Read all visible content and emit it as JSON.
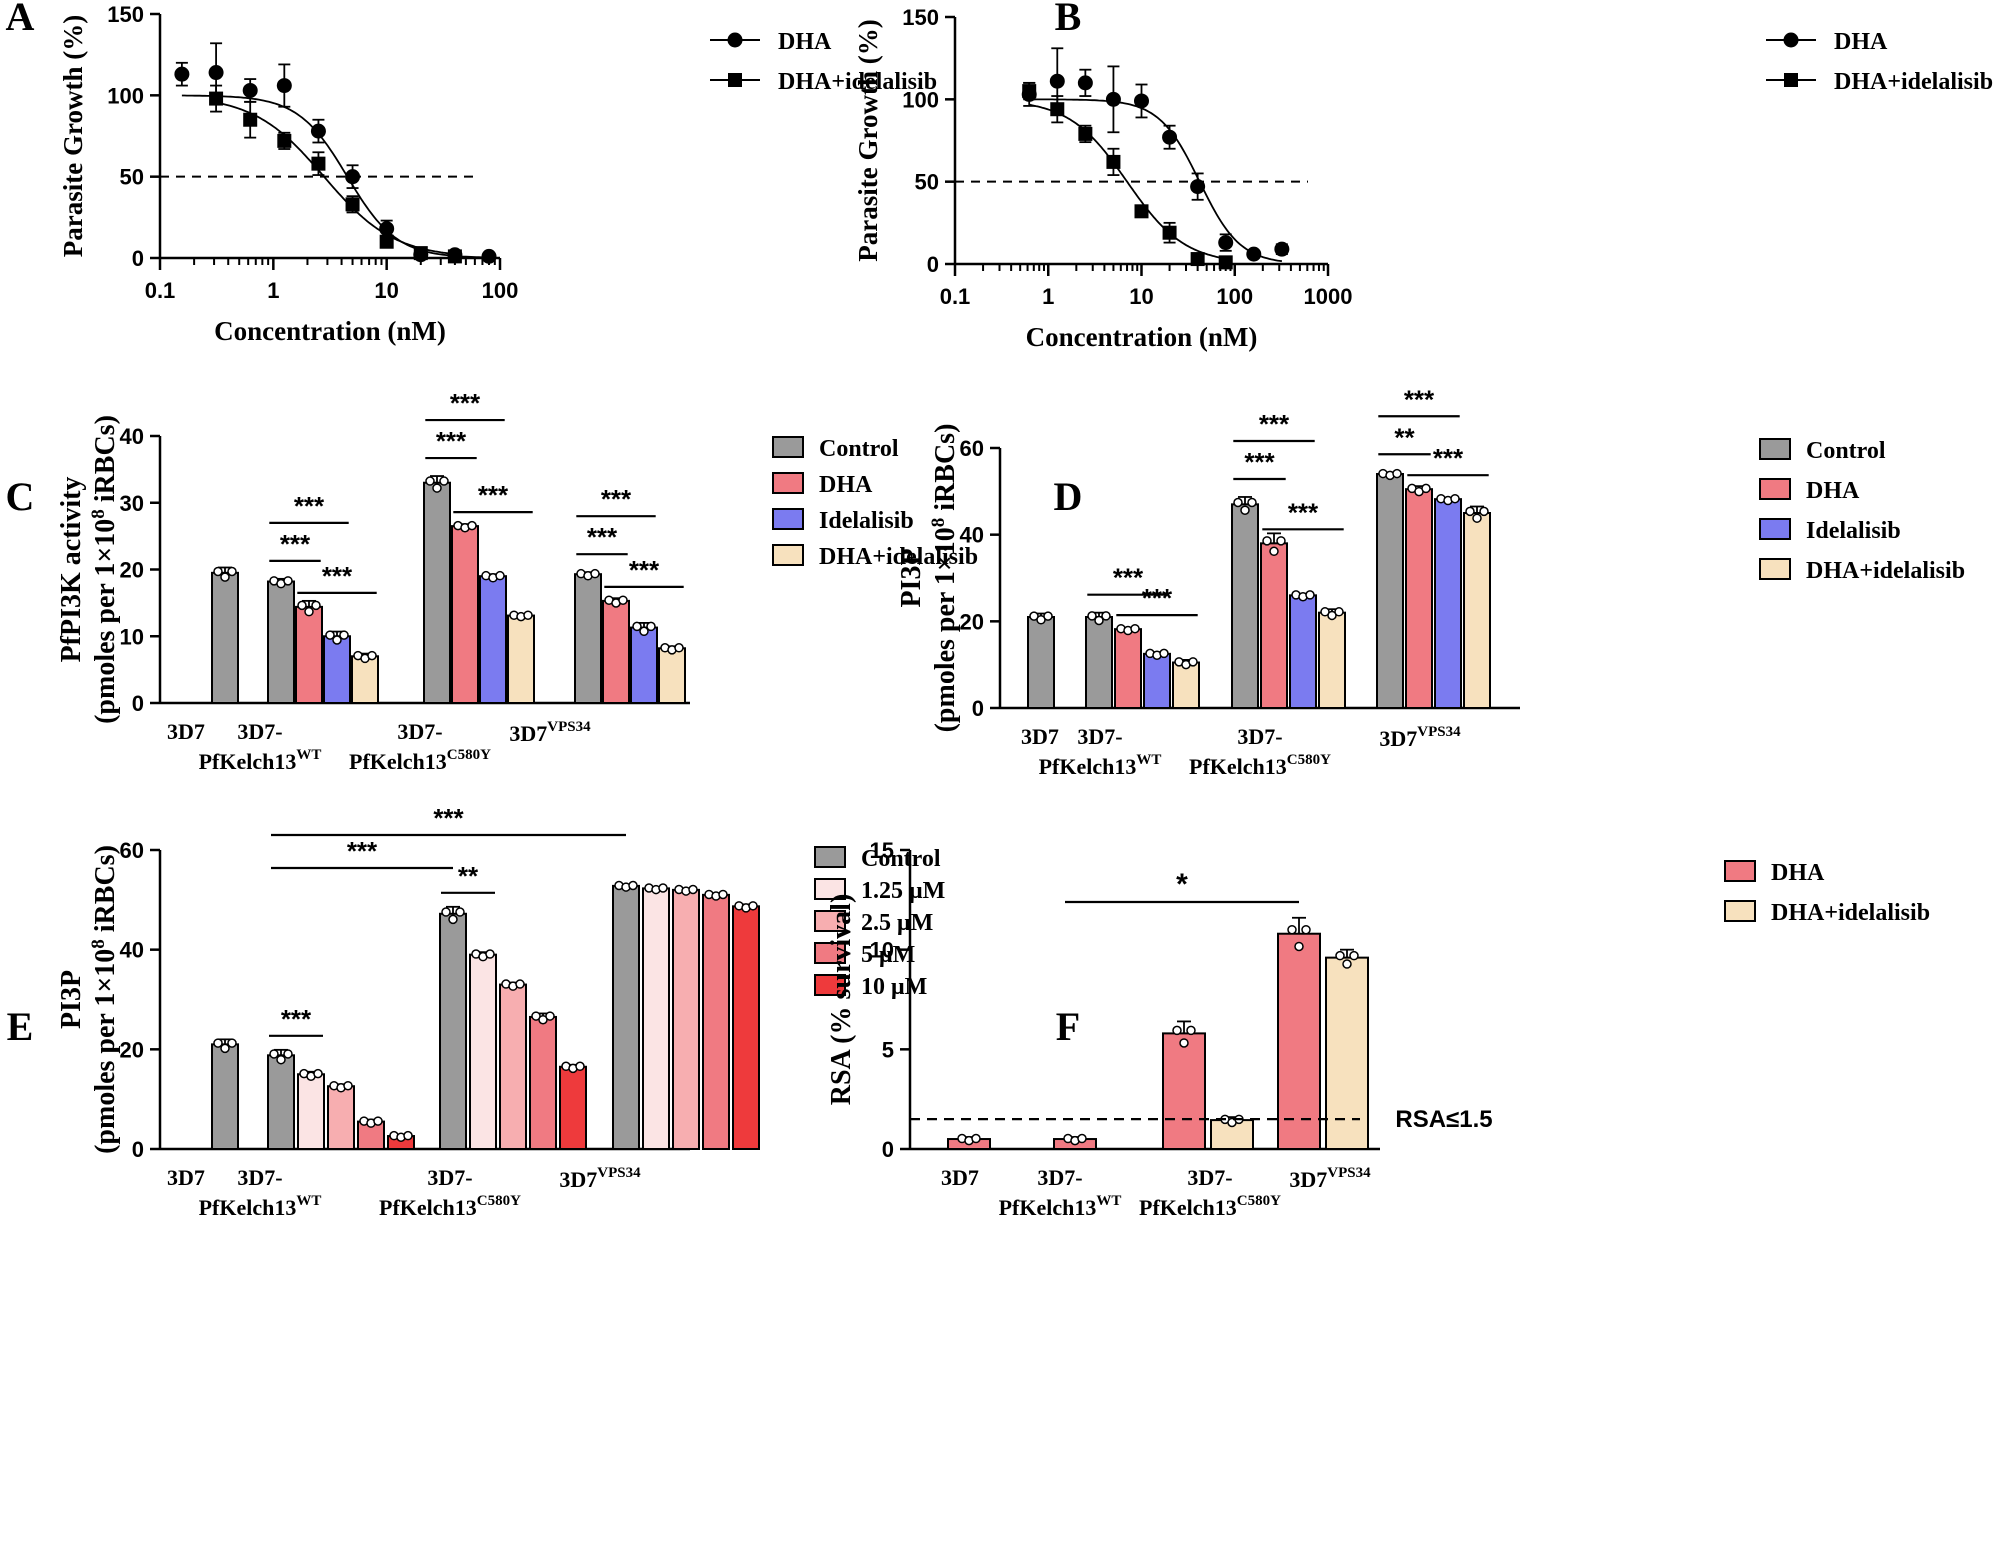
{
  "panel_letters": [
    "A",
    "B",
    "C",
    "D",
    "E",
    "F"
  ],
  "colors": {
    "control": "#9A9A9A",
    "dha": "#F07A82",
    "idelalisib": "#7B7BF0",
    "combo": "#F7E1BE",
    "c125": "#FBE4E4",
    "c25": "#F7AEB0",
    "c5": "#F07A82",
    "c10": "#EE3A3C"
  },
  "chart_data": [
    {
      "panel": "A",
      "type": "scatter",
      "title": "",
      "xlabel": "Concentration (nM)",
      "ylabel": "Parasite Growth (%)",
      "xscale": "log",
      "xlim": [
        0.1,
        100
      ],
      "ylim": [
        0,
        150
      ],
      "x_ticks": [
        "0.1",
        "1",
        "10",
        "100"
      ],
      "y_ticks": [
        "0",
        "50",
        "100",
        "150"
      ],
      "reference_line": 50,
      "legend_position": "top-right",
      "series": [
        {
          "name": "DHA",
          "marker": "circle",
          "x": [
            0.156,
            0.3125,
            0.625,
            1.25,
            2.5,
            5,
            10,
            20,
            40,
            80
          ],
          "y": [
            113,
            114,
            103,
            106,
            78,
            50,
            18,
            2,
            2,
            1
          ],
          "err": [
            7,
            18,
            7,
            13,
            7,
            7,
            5,
            2,
            1,
            1
          ],
          "fit_ic50": 4.5,
          "fit_hill": 2.0
        },
        {
          "name": "DHA+idelalisib",
          "marker": "square",
          "x": [
            0.3125,
            0.625,
            1.25,
            2.5,
            5,
            10,
            20,
            40
          ],
          "y": [
            98,
            85,
            72,
            58,
            33,
            10,
            3,
            1
          ],
          "err": [
            8,
            11,
            5,
            7,
            5,
            3,
            1,
            1
          ],
          "fit_ic50": 2.8,
          "fit_hill": 1.4
        }
      ]
    },
    {
      "panel": "B",
      "type": "scatter",
      "title": "",
      "xlabel": "Concentration (nM)",
      "ylabel": "Parasite Growth (%)",
      "xscale": "log",
      "xlim": [
        0.1,
        1000
      ],
      "ylim": [
        0,
        150
      ],
      "x_ticks": [
        "0.1",
        "1",
        "10",
        "100",
        "1000"
      ],
      "y_ticks": [
        "0",
        "50",
        "100",
        "150"
      ],
      "reference_line": 50,
      "legend_position": "top-right",
      "series": [
        {
          "name": "DHA",
          "marker": "circle",
          "x": [
            0.625,
            1.25,
            2.5,
            5,
            10,
            20,
            40,
            80,
            160,
            320
          ],
          "y": [
            103,
            111,
            110,
            100,
            99,
            77,
            47,
            13,
            6,
            9
          ],
          "err": [
            7,
            20,
            8,
            20,
            10,
            7,
            8,
            5,
            1,
            3
          ],
          "fit_ic50": 42,
          "fit_hill": 2.0
        },
        {
          "name": "DHA+idelalisib",
          "marker": "square",
          "x": [
            0.625,
            1.25,
            2.5,
            5,
            10,
            20,
            40,
            80
          ],
          "y": [
            105,
            94,
            79,
            62,
            32,
            19,
            3,
            1
          ],
          "err": [
            5,
            8,
            5,
            8,
            3,
            6,
            2,
            1
          ],
          "fit_ic50": 7,
          "fit_hill": 1.4
        }
      ]
    },
    {
      "panel": "C",
      "type": "bar",
      "ylabel_line1": "PfPI3K activity",
      "ylabel_line2": "(pmoles per 1×10",
      "ylabel_sup": "8",
      "ylabel_tail": " iRBCs)",
      "ylim": [
        0,
        40
      ],
      "y_ticks": [
        "0",
        "10",
        "20",
        "30",
        "40"
      ],
      "legend_position": "right",
      "series_names": [
        "Control",
        "DHA",
        "Idelalisib",
        "DHA+idelalisib"
      ],
      "groups": [
        {
          "label": "3D7",
          "sub": "",
          "bars": [
            19.5
          ]
        },
        {
          "label": "3D7-",
          "line2": "PfKelch13",
          "sub": "WT",
          "bars": [
            18.2,
            14.4,
            10.0,
            7.0
          ]
        },
        {
          "label": "3D7-",
          "line2": "PfKelch13",
          "sub": "C580Y",
          "bars": [
            33.0,
            26.5,
            19.0,
            13.1
          ]
        },
        {
          "label": "3D7",
          "sub": "VPS34",
          "bars": [
            19.3,
            15.3,
            11.3,
            8.2
          ]
        }
      ],
      "errors": [
        [
          0.8
        ],
        [
          0.4,
          0.9,
          0.7,
          0.4
        ],
        [
          1.0,
          0.3,
          0.3,
          0.2
        ],
        [
          0.3,
          0.4,
          0.7,
          0.3
        ]
      ],
      "significance": [
        {
          "group": 1,
          "from": 0,
          "to": 1,
          "label": "***",
          "level": 0
        },
        {
          "group": 1,
          "from": 0,
          "to": 2,
          "label": "***",
          "level": 1
        },
        {
          "group": 1,
          "from": 1,
          "to": 3,
          "label": "***",
          "level": -1
        },
        {
          "group": 2,
          "from": 0,
          "to": 1,
          "label": "***",
          "level": 0
        },
        {
          "group": 2,
          "from": 0,
          "to": 2,
          "label": "***",
          "level": 1
        },
        {
          "group": 2,
          "from": 1,
          "to": 3,
          "label": "***",
          "level": -1
        },
        {
          "group": 3,
          "from": 0,
          "to": 1,
          "label": "***",
          "level": 0
        },
        {
          "group": 3,
          "from": 0,
          "to": 2,
          "label": "***",
          "level": 1
        },
        {
          "group": 3,
          "from": 1,
          "to": 3,
          "label": "***",
          "level": -1
        }
      ]
    },
    {
      "panel": "D",
      "type": "bar",
      "ylabel_line1": "PI3P",
      "ylabel_line2": "(pmoles per 1×10",
      "ylabel_sup": "8",
      "ylabel_tail": " iRBCs)",
      "ylim": [
        0,
        60
      ],
      "y_ticks": [
        "0",
        "20",
        "40",
        "60"
      ],
      "legend_position": "right",
      "series_names": [
        "Control",
        "DHA",
        "Idelalisib",
        "DHA+idelalisib"
      ],
      "groups": [
        {
          "label": "3D7",
          "sub": "",
          "bars": [
            21.0
          ]
        },
        {
          "label": "3D7-",
          "line2": "PfKelch13",
          "sub": "WT",
          "bars": [
            21.0,
            18.2,
            12.5,
            10.5
          ]
        },
        {
          "label": "3D7-",
          "line2": "PfKelch13",
          "sub": "C580Y",
          "bars": [
            47.0,
            38.0,
            26.0,
            22.0
          ]
        },
        {
          "label": "3D7",
          "sub": "VPS34",
          "bars": [
            54.0,
            50.5,
            48.2,
            45.0
          ]
        }
      ],
      "errors": [
        [
          0.8
        ],
        [
          1.0,
          0.4,
          0.4,
          0.6
        ],
        [
          1.7,
          2.3,
          0.4,
          0.8
        ],
        [
          0.4,
          0.7,
          0.4,
          1.5
        ]
      ],
      "significance": [
        {
          "group": 1,
          "from": 0,
          "to": 2,
          "label": "***",
          "level": 0
        },
        {
          "group": 1,
          "from": 1,
          "to": 3,
          "label": "***",
          "level": -1
        },
        {
          "group": 2,
          "from": 0,
          "to": 1,
          "label": "***",
          "level": 0
        },
        {
          "group": 2,
          "from": 0,
          "to": 2,
          "label": "***",
          "level": 1
        },
        {
          "group": 2,
          "from": 1,
          "to": 3,
          "label": "***",
          "level": -1
        },
        {
          "group": 3,
          "from": 0,
          "to": 1,
          "label": "**",
          "level": 0
        },
        {
          "group": 3,
          "from": 0,
          "to": 2,
          "label": "***",
          "level": 1
        },
        {
          "group": 3,
          "from": 1,
          "to": 3,
          "label": "***",
          "level": -1
        }
      ]
    },
    {
      "panel": "E",
      "type": "bar",
      "ylabel_line1": "PI3P",
      "ylabel_line2": "(pmoles per 1×10",
      "ylabel_sup": "8",
      "ylabel_tail": " iRBCs)",
      "ylim": [
        0,
        60
      ],
      "y_ticks": [
        "0",
        "20",
        "40",
        "60"
      ],
      "legend_position": "top-right",
      "series_names": [
        "Control",
        "1.25 μM",
        "2.5 μM",
        "5 μM",
        "10 μM"
      ],
      "groups": [
        {
          "label": "3D7",
          "sub": "",
          "bars": [
            21.0
          ]
        },
        {
          "label": "3D7-",
          "line2": "PfKelch13",
          "sub": "WT",
          "bars": [
            18.8,
            15.0,
            12.6,
            5.5,
            2.6
          ]
        },
        {
          "label": "3D7-",
          "line2": "PfKelch13",
          "sub": "C580Y",
          "bars": [
            47.2,
            39.0,
            33.0,
            26.5,
            16.5
          ]
        },
        {
          "label": "3D7",
          "sub": "VPS34",
          "bars": [
            52.8,
            52.3,
            52.0,
            51.0,
            48.7
          ]
        }
      ],
      "errors": [
        [
          1.0
        ],
        [
          1.1,
          0.5,
          0.4,
          0.4,
          0.3
        ],
        [
          1.4,
          0.5,
          0.4,
          0.7,
          0.4
        ],
        [
          0.3,
          0.3,
          0.3,
          0.3,
          0.4
        ]
      ],
      "significance": [
        {
          "label": "***",
          "type": "inner",
          "group": 1,
          "from": 0,
          "to": 1
        },
        {
          "label": "**",
          "type": "inner",
          "group": 2,
          "from": 0,
          "to": 1
        },
        {
          "label": "***",
          "type": "span",
          "from_group": 1,
          "to_group": 2
        },
        {
          "label": "***",
          "type": "span2",
          "from_group": 1,
          "to_group": 3
        }
      ]
    },
    {
      "panel": "F",
      "type": "bar",
      "ylabel": "RSA (% survival)",
      "ylim": [
        0,
        15
      ],
      "y_ticks": [
        "0",
        "5",
        "10",
        "15"
      ],
      "reference_line": 1.5,
      "reference_label": "RSA≤1.5",
      "legend_position": "top-right",
      "series_names": [
        "DHA",
        "DHA+idelalisib"
      ],
      "groups": [
        {
          "label": "3D7",
          "sub": "",
          "bars": [
            0.5
          ]
        },
        {
          "label": "3D7-",
          "line2": "PfKelch13",
          "sub": "WT",
          "bars": [
            0.5
          ]
        },
        {
          "label": "3D7-",
          "line2": "PfKelch13",
          "sub": "C580Y",
          "bars": [
            5.8,
            1.45
          ]
        },
        {
          "label": "3D7",
          "sub": "VPS34",
          "bars": [
            10.8,
            9.6
          ]
        }
      ],
      "errors": [
        [
          0.1
        ],
        [
          0.1
        ],
        [
          0.6,
          0.15
        ],
        [
          0.8,
          0.4
        ]
      ],
      "significance": [
        {
          "label": "*",
          "type": "span",
          "from_group": 1,
          "to_group": 3
        }
      ]
    }
  ]
}
